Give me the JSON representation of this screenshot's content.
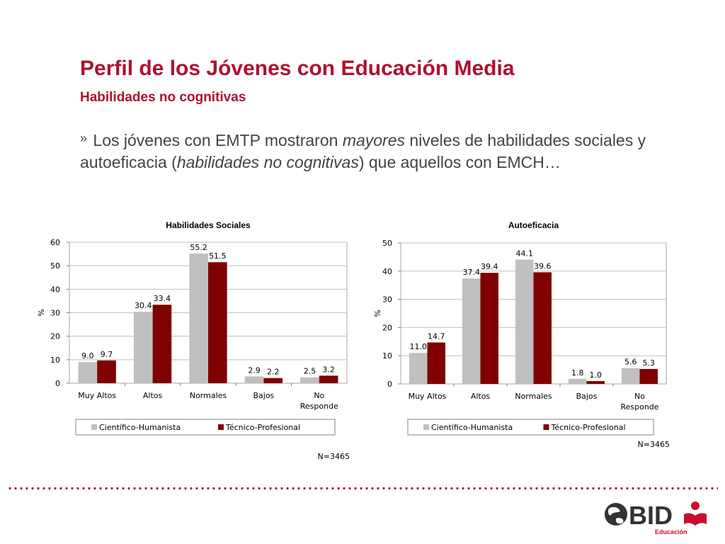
{
  "slide": {
    "title": "Perfil de los Jóvenes con Educación Media",
    "subtitle": "Habilidades no cognitivas",
    "bullet_mark": "»",
    "bullet_parts": [
      {
        "text": "Los jóvenes con EMTP mostraron ",
        "italic": false
      },
      {
        "text": "mayores",
        "italic": true
      },
      {
        "text": " niveles de habilidades sociales y autoeficacia (",
        "italic": false
      },
      {
        "text": "habilidades no cognitivas",
        "italic": true
      },
      {
        "text": ") que aquellos con EMCH…",
        "italic": false
      }
    ]
  },
  "logo": {
    "brand": "BID",
    "division": "Educación",
    "colors": {
      "dark": "#333333",
      "red": "#c8102e"
    }
  },
  "colors": {
    "accent": "#b0102d",
    "series_1": "#c0c0c0",
    "series_2": "#800000",
    "grid": "#bfbfbf"
  },
  "chart_data": [
    {
      "type": "bar",
      "title": "Habilidades Sociales",
      "ylabel": "%",
      "ylim": [
        0,
        60
      ],
      "yticks": [
        0,
        10,
        20,
        30,
        40,
        50,
        60
      ],
      "categories": [
        [
          "Muy Altos"
        ],
        [
          "Altos"
        ],
        [
          "Normales"
        ],
        [
          "Bajos"
        ],
        [
          "No",
          "Responde"
        ]
      ],
      "series": [
        {
          "name": "Científico-Humanista",
          "values": [
            9.0,
            30.4,
            55.2,
            2.9,
            2.5
          ],
          "labels": [
            "9.0",
            "30.4",
            "55.2",
            "2.9",
            "2.5"
          ]
        },
        {
          "name": "Técnico-Profesional",
          "values": [
            9.7,
            33.4,
            51.5,
            2.2,
            3.2
          ],
          "labels": [
            "9.7",
            "33.4",
            "51.5",
            "2.2",
            "3.2"
          ]
        }
      ],
      "grid": true,
      "legend_position": "bottom",
      "note": "N=3465"
    },
    {
      "type": "bar",
      "title": "Autoeficacia",
      "ylabel": "%",
      "ylim": [
        0,
        50
      ],
      "yticks": [
        0,
        10,
        20,
        30,
        40,
        50
      ],
      "categories": [
        [
          "Muy Altos"
        ],
        [
          "Altos"
        ],
        [
          "Normales"
        ],
        [
          "Bajos"
        ],
        [
          "No",
          "Responde"
        ]
      ],
      "series": [
        {
          "name": "Científico-Humanista",
          "values": [
            11.0,
            37.4,
            44.1,
            1.8,
            5.6
          ],
          "labels": [
            "11.0",
            "37.4",
            "44.1",
            "1.8",
            "5.6"
          ]
        },
        {
          "name": "Técnico-Profesional",
          "values": [
            14.7,
            39.4,
            39.6,
            1.0,
            5.3
          ],
          "labels": [
            "14.7",
            "39.4",
            "39.6",
            "1.0",
            "5.3"
          ]
        }
      ],
      "grid": true,
      "legend_position": "bottom",
      "note": "N=3465"
    }
  ]
}
